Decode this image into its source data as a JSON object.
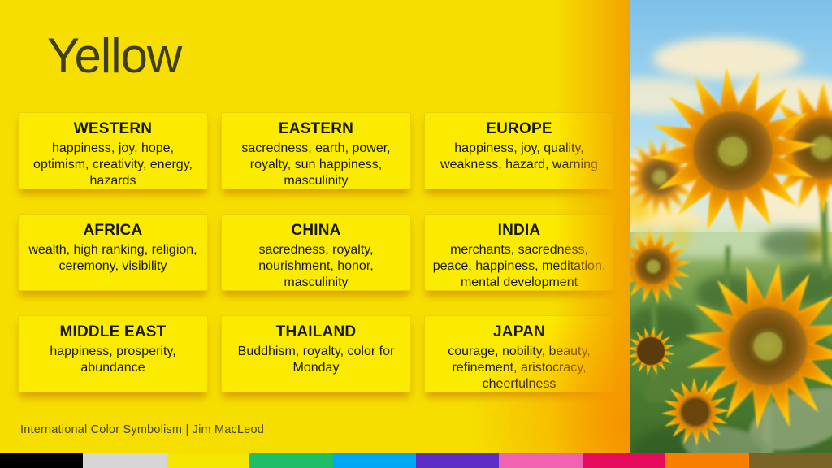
{
  "title": "Yellow",
  "cards": [
    {
      "region": "WESTERN",
      "meanings": "happiness, joy, hope, optimism, creativity, energy, hazards"
    },
    {
      "region": "EASTERN",
      "meanings": "sacredness, earth, power, royalty, sun happiness, masculinity"
    },
    {
      "region": "EUROPE",
      "meanings": "happiness, joy, quality, weakness, hazard, warning"
    },
    {
      "region": "AFRICA",
      "meanings": "wealth, high ranking, religion, ceremony, visibility"
    },
    {
      "region": "CHINA",
      "meanings": "sacredness, royalty, nourishment, honor, masculinity"
    },
    {
      "region": "INDIA",
      "meanings": "merchants, sacredness, peace, happiness, meditation, mental development"
    },
    {
      "region": "MIDDLE EAST",
      "meanings": "happiness, prosperity, abundance"
    },
    {
      "region": "THAILAND",
      "meanings": "Buddhism, royalty, color for Monday"
    },
    {
      "region": "JAPAN",
      "meanings": "courage, nobility, beauty, refinement, aristocracy, cheerfulness"
    }
  ],
  "footer": {
    "credit": "International Color Symbolism | Jim MacLeod"
  },
  "colors": {
    "background": "#F6DE00",
    "card": "#FBEB00",
    "edge_glow": "#F2A300",
    "title_text": "#3E3E1C",
    "card_text": "#191902"
  },
  "palette": {
    "swatches": [
      "#000000",
      "#D6D6D6",
      "#F5E700",
      "#1EBE68",
      "#00A7F5",
      "#5C2EC5",
      "#F163B0",
      "#E60A5D",
      "#F87E00",
      "#7A6327"
    ]
  }
}
